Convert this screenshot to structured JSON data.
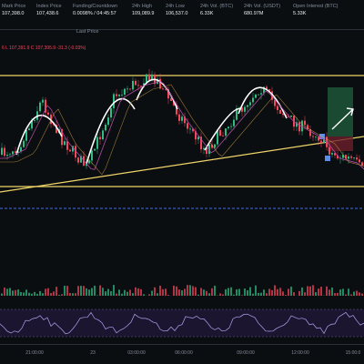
{
  "header": {
    "stats": [
      {
        "label": "Mark Price",
        "value": "107,398.0"
      },
      {
        "label": "Index Price",
        "value": "107,438.6"
      },
      {
        "label": "Funding/Countdown",
        "value": "0.0098% / 04:45:57"
      },
      {
        "label": "24h High",
        "value": "109,089.9"
      },
      {
        "label": "24h Low",
        "value": "106,537.0"
      },
      {
        "label": "24h Vol. (BTC)",
        "value": "6.33K"
      },
      {
        "label": "24h Vol. (USDT)",
        "value": "680.97M"
      },
      {
        "label": "Open Interest (BTC)",
        "value": "5.33K"
      }
    ]
  },
  "toolbar": {
    "price_type": "Last Price",
    "ohlc": "6 L 107,391.9 C 107,395.9 -31.3 (-0.03%)"
  },
  "time_axis": [
    "21:00:00",
    "23",
    "03:00:00",
    "06:00:00",
    "09:00:00",
    "12:00:00",
    "15:00:0"
  ]
}
